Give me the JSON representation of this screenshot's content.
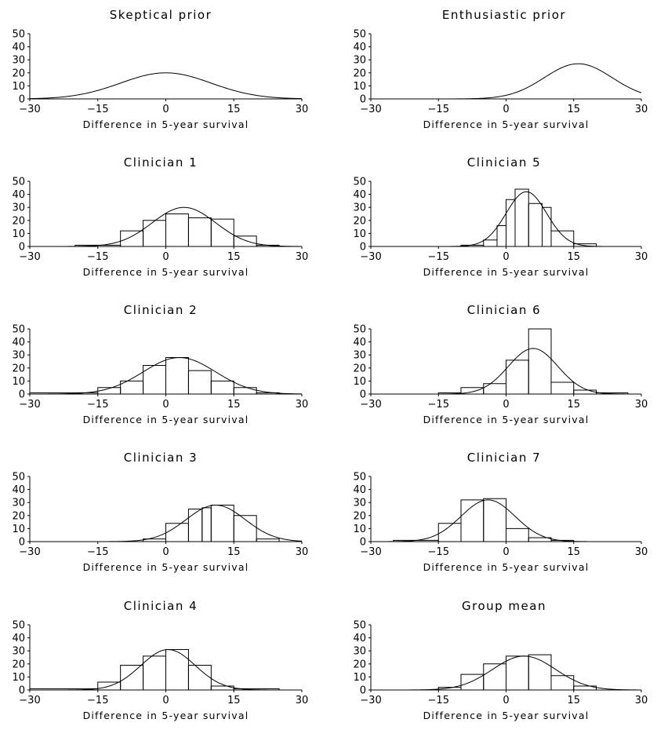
{
  "chart_data": [
    {
      "type": "histogram",
      "title": "Skeptical prior",
      "xlabel": "Difference in 5-year survival",
      "xlim": [
        -30,
        30
      ],
      "ylim": [
        0,
        50
      ],
      "xticks": [
        -30,
        -15,
        0,
        15,
        30
      ],
      "yticks": [
        0,
        10,
        20,
        30,
        40,
        50
      ],
      "curve": {
        "mean": 0,
        "sd": 10,
        "peak": 20
      },
      "bins": []
    },
    {
      "type": "histogram",
      "title": "Enthusiastic prior",
      "xlabel": "Difference in 5-year survival",
      "xlim": [
        -30,
        30
      ],
      "ylim": [
        0,
        50
      ],
      "xticks": [
        -30,
        -15,
        0,
        15,
        30
      ],
      "yticks": [
        0,
        10,
        20,
        30,
        40,
        50
      ],
      "curve": {
        "mean": 16,
        "sd": 7.5,
        "peak": 27
      },
      "bins": []
    },
    {
      "type": "histogram",
      "title": "Clinician 1",
      "xlabel": "Difference in 5-year survival",
      "xlim": [
        -30,
        30
      ],
      "ylim": [
        0,
        50
      ],
      "xticks": [
        -30,
        -15,
        0,
        15,
        30
      ],
      "yticks": [
        0,
        10,
        20,
        30,
        40,
        50
      ],
      "curve": {
        "mean": 4,
        "sd": 7,
        "peak": 30
      },
      "bins": [
        {
          "x0": -30,
          "x1": -20,
          "y": 0
        },
        {
          "x0": -20,
          "x1": -10,
          "y": 1
        },
        {
          "x0": -10,
          "x1": -5,
          "y": 12
        },
        {
          "x0": -5,
          "x1": 0,
          "y": 20
        },
        {
          "x0": 0,
          "x1": 5,
          "y": 25
        },
        {
          "x0": 5,
          "x1": 10,
          "y": 22
        },
        {
          "x0": 10,
          "x1": 15,
          "y": 21
        },
        {
          "x0": 15,
          "x1": 20,
          "y": 8
        },
        {
          "x0": 20,
          "x1": 25,
          "y": 1
        }
      ]
    },
    {
      "type": "histogram",
      "title": "Clinician 5",
      "xlabel": "Difference in 5-year survival",
      "xlim": [
        -30,
        30
      ],
      "ylim": [
        0,
        50
      ],
      "xticks": [
        -30,
        -15,
        0,
        15,
        30
      ],
      "yticks": [
        0,
        10,
        20,
        30,
        40,
        50
      ],
      "curve": {
        "mean": 4.5,
        "sd": 4.5,
        "peak": 42
      },
      "bins": [
        {
          "x0": -10,
          "x1": -5,
          "y": 1
        },
        {
          "x0": -5,
          "x1": -2,
          "y": 5
        },
        {
          "x0": -2,
          "x1": 0,
          "y": 16
        },
        {
          "x0": 0,
          "x1": 2,
          "y": 36
        },
        {
          "x0": 2,
          "x1": 5,
          "y": 44
        },
        {
          "x0": 5,
          "x1": 8,
          "y": 33
        },
        {
          "x0": 8,
          "x1": 10,
          "y": 30
        },
        {
          "x0": 10,
          "x1": 15,
          "y": 12
        },
        {
          "x0": 15,
          "x1": 20,
          "y": 2
        }
      ]
    },
    {
      "type": "histogram",
      "title": "Clinician 2",
      "xlabel": "Difference in 5-year survival",
      "xlim": [
        -30,
        30
      ],
      "ylim": [
        0,
        50
      ],
      "xticks": [
        -30,
        -15,
        0,
        15,
        30
      ],
      "yticks": [
        0,
        10,
        20,
        30,
        40,
        50
      ],
      "curve": {
        "mean": 3,
        "sd": 8,
        "peak": 28
      },
      "bins": [
        {
          "x0": -30,
          "x1": -15,
          "y": 1
        },
        {
          "x0": -15,
          "x1": -10,
          "y": 5
        },
        {
          "x0": -10,
          "x1": -5,
          "y": 10
        },
        {
          "x0": -5,
          "x1": 0,
          "y": 22
        },
        {
          "x0": 0,
          "x1": 5,
          "y": 28
        },
        {
          "x0": 5,
          "x1": 10,
          "y": 18
        },
        {
          "x0": 10,
          "x1": 15,
          "y": 10
        },
        {
          "x0": 15,
          "x1": 20,
          "y": 5
        },
        {
          "x0": 20,
          "x1": 25,
          "y": 1
        }
      ]
    },
    {
      "type": "histogram",
      "title": "Clinician 6",
      "xlabel": "Difference in 5-year survival",
      "xlim": [
        -30,
        30
      ],
      "ylim": [
        0,
        50
      ],
      "xticks": [
        -30,
        -15,
        0,
        15,
        30
      ],
      "yticks": [
        0,
        10,
        20,
        30,
        40,
        50
      ],
      "curve": {
        "mean": 6,
        "sd": 5.5,
        "peak": 35
      },
      "bins": [
        {
          "x0": -15,
          "x1": -10,
          "y": 1
        },
        {
          "x0": -10,
          "x1": -5,
          "y": 5
        },
        {
          "x0": -5,
          "x1": 0,
          "y": 8
        },
        {
          "x0": 0,
          "x1": 5,
          "y": 26
        },
        {
          "x0": 5,
          "x1": 10,
          "y": 50
        },
        {
          "x0": 10,
          "x1": 15,
          "y": 9
        },
        {
          "x0": 15,
          "x1": 20,
          "y": 3
        },
        {
          "x0": 20,
          "x1": 27,
          "y": 1
        }
      ]
    },
    {
      "type": "histogram",
      "title": "Clinician 3",
      "xlabel": "Difference in 5-year survival",
      "xlim": [
        -30,
        30
      ],
      "ylim": [
        0,
        50
      ],
      "xticks": [
        -30,
        -15,
        0,
        15,
        30
      ],
      "yticks": [
        0,
        10,
        20,
        30,
        40,
        50
      ],
      "curve": {
        "mean": 11,
        "sd": 6.5,
        "peak": 28
      },
      "bins": [
        {
          "x0": -30,
          "x1": -5,
          "y": 0
        },
        {
          "x0": -5,
          "x1": 0,
          "y": 2
        },
        {
          "x0": 0,
          "x1": 5,
          "y": 14
        },
        {
          "x0": 5,
          "x1": 8,
          "y": 25
        },
        {
          "x0": 8,
          "x1": 10,
          "y": 26
        },
        {
          "x0": 10,
          "x1": 15,
          "y": 28
        },
        {
          "x0": 15,
          "x1": 20,
          "y": 20
        },
        {
          "x0": 20,
          "x1": 25,
          "y": 2
        }
      ]
    },
    {
      "type": "histogram",
      "title": "Clinician 7",
      "xlabel": "Difference in 5-year survival",
      "xlim": [
        -30,
        30
      ],
      "ylim": [
        0,
        50
      ],
      "xticks": [
        -30,
        -15,
        0,
        15,
        30
      ],
      "yticks": [
        0,
        10,
        20,
        30,
        40,
        50
      ],
      "curve": {
        "mean": -4,
        "sd": 6,
        "peak": 32
      },
      "bins": [
        {
          "x0": -25,
          "x1": -15,
          "y": 1
        },
        {
          "x0": -15,
          "x1": -10,
          "y": 14
        },
        {
          "x0": -10,
          "x1": -5,
          "y": 32
        },
        {
          "x0": -5,
          "x1": 0,
          "y": 33
        },
        {
          "x0": 0,
          "x1": 5,
          "y": 10
        },
        {
          "x0": 5,
          "x1": 10,
          "y": 3
        },
        {
          "x0": 10,
          "x1": 15,
          "y": 1
        }
      ]
    },
    {
      "type": "histogram",
      "title": "Clinician 4",
      "xlabel": "Difference in 5-year survival",
      "xlim": [
        -30,
        30
      ],
      "ylim": [
        0,
        50
      ],
      "xticks": [
        -30,
        -15,
        0,
        15,
        30
      ],
      "yticks": [
        0,
        10,
        20,
        30,
        40,
        50
      ],
      "curve": {
        "mean": 0.5,
        "sd": 6,
        "peak": 31
      },
      "bins": [
        {
          "x0": -30,
          "x1": -15,
          "y": 1
        },
        {
          "x0": -15,
          "x1": -10,
          "y": 6
        },
        {
          "x0": -10,
          "x1": -5,
          "y": 19
        },
        {
          "x0": -5,
          "x1": 0,
          "y": 26
        },
        {
          "x0": 0,
          "x1": 5,
          "y": 31
        },
        {
          "x0": 5,
          "x1": 10,
          "y": 19
        },
        {
          "x0": 10,
          "x1": 15,
          "y": 3
        },
        {
          "x0": 15,
          "x1": 25,
          "y": 1
        }
      ]
    },
    {
      "type": "histogram",
      "title": "Group mean",
      "xlabel": "Difference in 5-year survival",
      "xlim": [
        -30,
        30
      ],
      "ylim": [
        0,
        50
      ],
      "xticks": [
        -30,
        -15,
        0,
        15,
        30
      ],
      "yticks": [
        0,
        10,
        20,
        30,
        40,
        50
      ],
      "curve": {
        "mean": 4,
        "sd": 7,
        "peak": 26
      },
      "bins": [
        {
          "x0": -15,
          "x1": -10,
          "y": 2
        },
        {
          "x0": -10,
          "x1": -5,
          "y": 12
        },
        {
          "x0": -5,
          "x1": 0,
          "y": 20
        },
        {
          "x0": 0,
          "x1": 5,
          "y": 26
        },
        {
          "x0": 5,
          "x1": 10,
          "y": 27
        },
        {
          "x0": 10,
          "x1": 15,
          "y": 11
        },
        {
          "x0": 15,
          "x1": 20,
          "y": 3
        }
      ]
    }
  ]
}
